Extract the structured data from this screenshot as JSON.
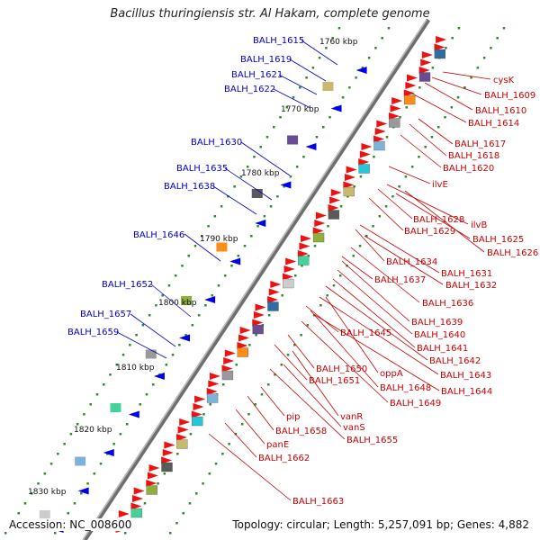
{
  "title": "Bacillus thuringiensis str. Al Hakam, complete genome",
  "footer": {
    "accession": "Accession: NC_008600",
    "summary": "Topology: circular; Length: 5,257,091 bp; Genes: 4,882"
  },
  "colors": {
    "left_label": "#0000cc",
    "right_label": "#cc0000",
    "backbone": "#888888",
    "forward_gene": "#ff0000",
    "reverse_gene": "#0000ff",
    "gc_dots": "#008000"
  },
  "kbp_labels": [
    "1760 kbp",
    "1770 kbp",
    "1780 kbp",
    "1790 kbp",
    "1800 kbp",
    "1810 kbp",
    "1820 kbp",
    "1830 kbp"
  ],
  "left_labels": [
    "BALH_1615",
    "BALH_1619",
    "BALH_1621",
    "BALH_1622",
    "BALH_1630",
    "BALH_1635",
    "BALH_1638",
    "BALH_1646",
    "BALH_1652",
    "BALH_1657",
    "BALH_1659"
  ],
  "right_labels": [
    "cysK",
    "BALH_1609",
    "BALH_1610",
    "BALH_1614",
    "BALH_1617",
    "BALH_1618",
    "BALH_1620",
    "ilvE",
    "BALH_1628",
    "ilvB",
    "BALH_1629",
    "BALH_1625",
    "BALH_1626",
    "BALH_1634",
    "BALH_1631",
    "BALH_1637",
    "BALH_1632",
    "BALH_1636",
    "BALH_1639",
    "BALH_1645",
    "BALH_1640",
    "BALH_1641",
    "BALH_1642",
    "oppA",
    "BALH_1650",
    "BALH_1643",
    "BALH_1651",
    "BALH_1648",
    "BALH_1644",
    "BALH_1649",
    "pip",
    "vanR",
    "BALH_1658",
    "vanS",
    "BALH_1655",
    "panE",
    "BALH_1662",
    "BALH_1663"
  ]
}
